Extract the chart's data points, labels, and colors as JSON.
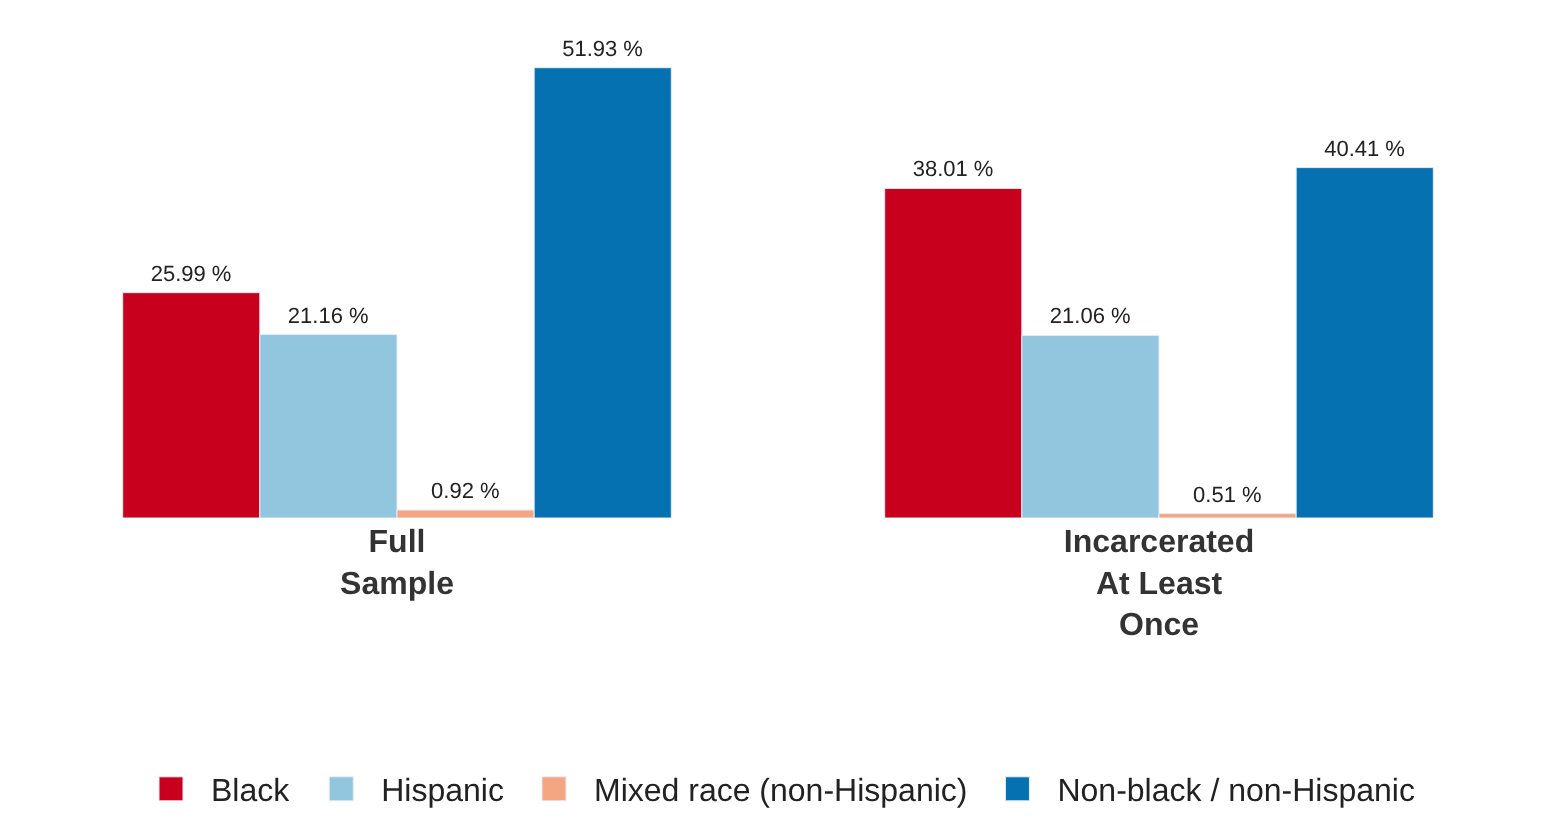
{
  "chart_data": {
    "type": "bar",
    "categories": [
      "Full\nSample",
      "Incarcerated\nAt Least\nOnce"
    ],
    "series": [
      {
        "name": "Black",
        "color": "#c8001e",
        "values": [
          25.99,
          38.01
        ],
        "value_labels": [
          "25.99 %",
          "38.01 %"
        ]
      },
      {
        "name": "Hispanic",
        "color": "#92c5de",
        "values": [
          21.16,
          21.06
        ],
        "value_labels": [
          "21.16 %",
          "21.06 %"
        ]
      },
      {
        "name": "Mixed race (non-Hispanic)",
        "color": "#f4a582",
        "values": [
          0.92,
          0.51
        ],
        "value_labels": [
          "0.92 %",
          "0.51 %"
        ]
      },
      {
        "name": "Non-black / non-Hispanic",
        "color": "#0571b0",
        "values": [
          51.93,
          40.41
        ],
        "value_labels": [
          "51.93 %",
          "40.41 %"
        ]
      }
    ],
    "legend": "bottom"
  }
}
